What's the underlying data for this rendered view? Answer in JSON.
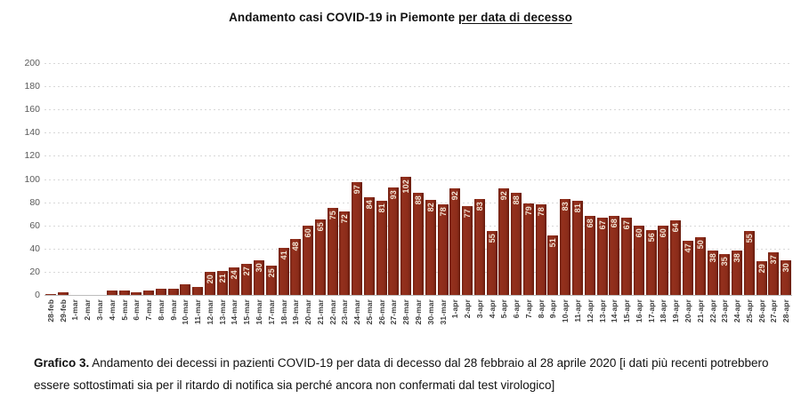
{
  "title": {
    "text_plain": "Andamento casi COVID-19 in Piemonte ",
    "text_underlined": "per data di decesso"
  },
  "chart_data": {
    "type": "bar",
    "title": "Andamento casi COVID-19 in Piemonte per data di decesso",
    "categories": [
      "28-feb",
      "29-feb",
      "1-mar",
      "2-mar",
      "3-mar",
      "4-mar",
      "5-mar",
      "6-mar",
      "7-mar",
      "8-mar",
      "9-mar",
      "10-mar",
      "11-mar",
      "12-mar",
      "13-mar",
      "14-mar",
      "15-mar",
      "16-mar",
      "17-mar",
      "18-mar",
      "19-mar",
      "20-mar",
      "21-mar",
      "22-mar",
      "23-mar",
      "24-mar",
      "25-mar",
      "26-mar",
      "27-mar",
      "28-mar",
      "29-mar",
      "30-mar",
      "31-mar",
      "1-apr",
      "2-apr",
      "3-apr",
      "4-apr",
      "5-apr",
      "6-apr",
      "7-apr",
      "8-apr",
      "9-apr",
      "10-apr",
      "11-apr",
      "12-apr",
      "13-apr",
      "14-apr",
      "15-apr",
      "16-apr",
      "17-apr",
      "18-apr",
      "19-apr",
      "20-apr",
      "21-apr",
      "22-apr",
      "23-apr",
      "24-apr",
      "25-apr",
      "26-apr",
      "27-apr",
      "28-apr"
    ],
    "values": [
      1,
      2,
      0,
      0,
      0,
      4,
      4,
      2,
      4,
      5,
      5,
      9,
      7,
      20,
      21,
      24,
      27,
      30,
      25,
      41,
      48,
      60,
      65,
      75,
      72,
      97,
      84,
      81,
      93,
      102,
      88,
      82,
      78,
      92,
      77,
      83,
      55,
      92,
      88,
      79,
      78,
      51,
      83,
      81,
      68,
      67,
      68,
      67,
      60,
      56,
      60,
      64,
      47,
      50,
      38,
      35,
      38,
      55,
      29,
      37,
      30
    ],
    "ylim": [
      0,
      200
    ],
    "yticks": [
      0,
      20,
      40,
      60,
      80,
      100,
      120,
      140,
      160,
      180,
      200
    ],
    "grid": "horizontal-dashed",
    "legend": "none",
    "bar_color": "#8B2C1A",
    "bar_label_color": "#F2E6D6",
    "axis_label_color": "#5A5A5A",
    "bar_label_min_value": 20
  },
  "caption": {
    "label": "Grafico 3.",
    "text": " Andamento dei decessi in pazienti COVID-19 per data di decesso dal 28 febbraio al 28 aprile 2020 [i dati più recenti potrebbero essere sottostimati sia per il ritardo di notifica sia perché ancora non confermati dal test virologico]"
  }
}
